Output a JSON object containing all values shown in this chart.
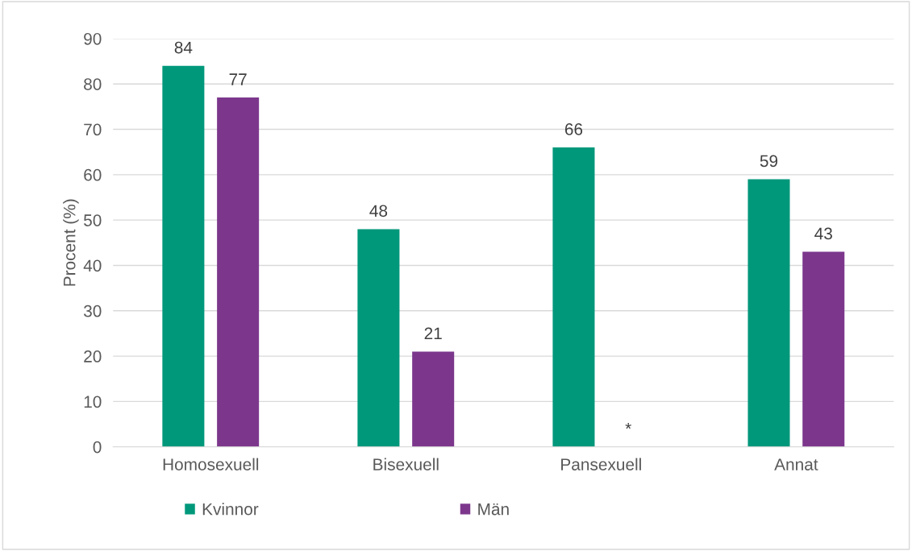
{
  "chart_data": {
    "type": "bar",
    "ylabel": "Procent (%)",
    "categories": [
      "Homosexuell",
      "Bisexuell",
      "Pansexuell",
      "Annat"
    ],
    "series": [
      {
        "name": "Kvinnor",
        "color": "#00987b",
        "values": [
          84,
          48,
          66,
          59
        ],
        "value_labels": [
          "84",
          "48",
          "66",
          "59"
        ]
      },
      {
        "name": "Män",
        "color": "#7c378c",
        "values": [
          77,
          21,
          null,
          43
        ],
        "value_labels": [
          "77",
          "21",
          "*",
          "43"
        ]
      }
    ],
    "ylim": [
      0,
      90
    ],
    "yticks": [
      0,
      10,
      20,
      30,
      40,
      50,
      60,
      70,
      80,
      90
    ],
    "grid": "y",
    "legend": "bottom"
  }
}
